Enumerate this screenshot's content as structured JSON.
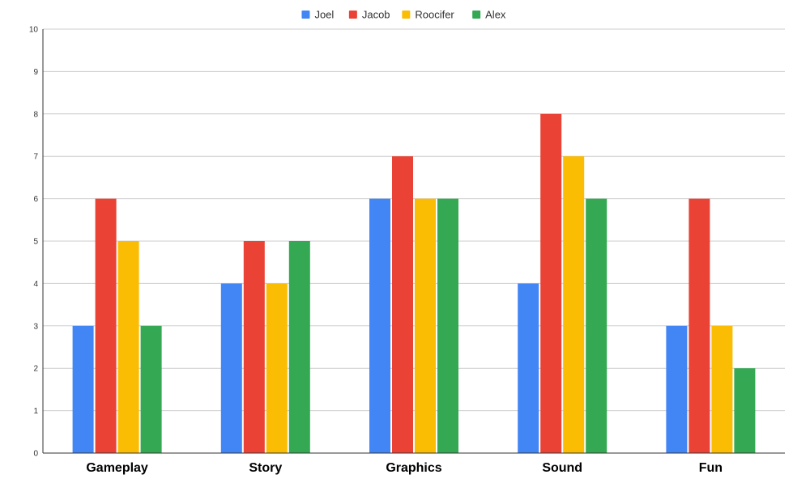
{
  "chart_data": {
    "type": "bar",
    "title": "",
    "xlabel": "",
    "ylabel": "",
    "categories": [
      "Gameplay",
      "Story",
      "Graphics",
      "Sound",
      "Fun"
    ],
    "series": [
      {
        "name": "Joel",
        "color": "#4285f4",
        "values": [
          3,
          4,
          6,
          4,
          3
        ]
      },
      {
        "name": "Jacob",
        "color": "#ea4335",
        "values": [
          6,
          5,
          7,
          8,
          6
        ]
      },
      {
        "name": "Roocifer",
        "color": "#fbbc04",
        "values": [
          5,
          4,
          6,
          7,
          3
        ]
      },
      {
        "name": "Alex",
        "color": "#34a853",
        "values": [
          3,
          5,
          6,
          6,
          2
        ]
      }
    ],
    "ylim": [
      0,
      10
    ],
    "yticks": [
      0,
      1,
      2,
      3,
      4,
      5,
      6,
      7,
      8,
      9,
      10
    ],
    "grid": true,
    "legend_position": "top-center"
  }
}
